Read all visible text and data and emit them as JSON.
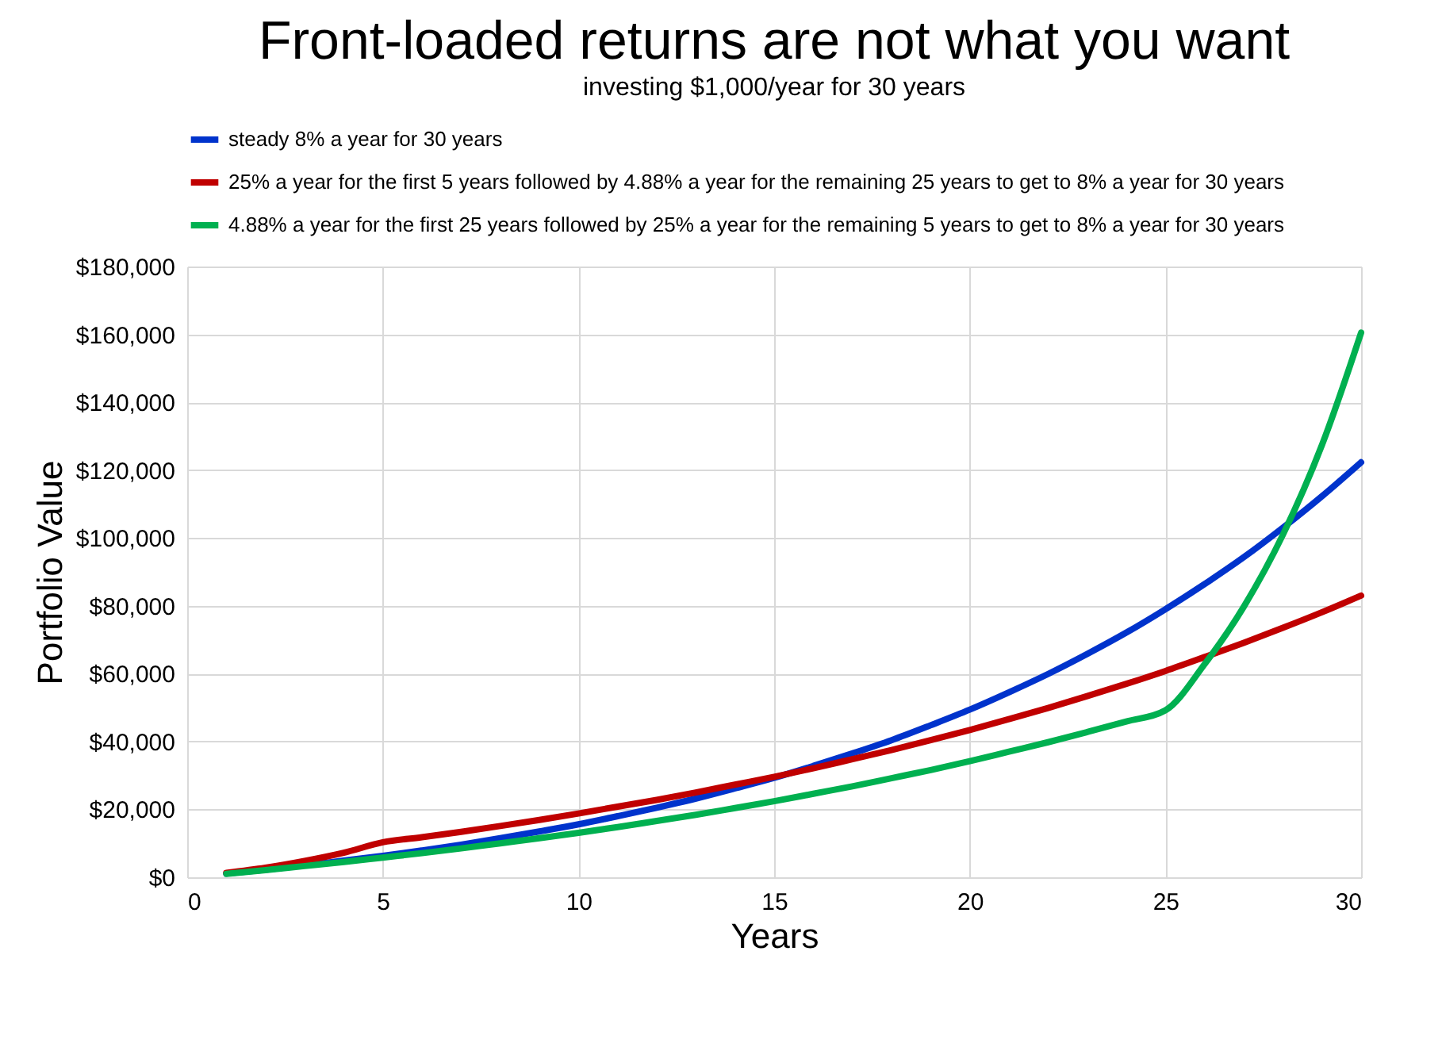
{
  "chart_data": {
    "type": "line",
    "title": "Front-loaded returns are not what you want",
    "subtitle": "investing $1,000/year for 30 years",
    "xlabel": "Years",
    "ylabel": "Portfolio Value",
    "x": [
      1,
      2,
      3,
      4,
      5,
      6,
      7,
      8,
      9,
      10,
      11,
      12,
      13,
      14,
      15,
      16,
      17,
      18,
      19,
      20,
      21,
      22,
      23,
      24,
      25,
      26,
      27,
      28,
      29,
      30
    ],
    "series": [
      {
        "name": "steady 8% a year for 30 years",
        "color": "#0033cc",
        "values": [
          1100,
          2200,
          3500,
          4900,
          6300,
          7900,
          9600,
          11500,
          13500,
          15600,
          18000,
          20500,
          23200,
          26200,
          29300,
          32800,
          36500,
          40400,
          44800,
          49400,
          54500,
          59900,
          65800,
          72100,
          79000,
          86400,
          94300,
          103000,
          112300,
          122300
        ]
      },
      {
        "name": "25% a year for the first 5 years followed by 4.88% a year for the remaining 25 years to get to 8% a year for 30 years",
        "color": "#c00000",
        "values": [
          1300,
          2800,
          4800,
          7200,
          10300,
          11800,
          13400,
          15100,
          16900,
          18800,
          20800,
          22800,
          25000,
          27300,
          29600,
          32100,
          34800,
          37500,
          40400,
          43400,
          46600,
          49900,
          53400,
          57000,
          60800,
          64900,
          69100,
          73500,
          78100,
          83000
        ]
      },
      {
        "name": "4.88% a year for the first 25 years followed by 25% a year for the remaining 5 years to get to 8% a year for 30 years",
        "color": "#00b050",
        "values": [
          1000,
          2100,
          3300,
          4500,
          5800,
          7100,
          8500,
          10000,
          11500,
          13100,
          14800,
          16600,
          18400,
          20400,
          22400,
          24600,
          26800,
          29200,
          31600,
          34200,
          37000,
          39800,
          42800,
          45900,
          49200,
          62800,
          79700,
          100900,
          127400,
          160500
        ]
      }
    ],
    "xlim": [
      0,
      30
    ],
    "xticks": [
      0,
      5,
      10,
      15,
      20,
      25,
      30
    ],
    "ylim": [
      0,
      180000
    ],
    "yticks": [
      {
        "value": 0,
        "label": "$0"
      },
      {
        "value": 20000,
        "label": "$20,000"
      },
      {
        "value": 40000,
        "label": "$40,000"
      },
      {
        "value": 60000,
        "label": "$60,000"
      },
      {
        "value": 80000,
        "label": "$80,000"
      },
      {
        "value": 100000,
        "label": "$100,000"
      },
      {
        "value": 120000,
        "label": "$120,000"
      },
      {
        "value": 140000,
        "label": "$140,000"
      },
      {
        "value": 160000,
        "label": "$160,000"
      },
      {
        "value": 180000,
        "label": "$180,000"
      }
    ],
    "grid": true,
    "legend": "top",
    "marker": "none",
    "line_style": "solid"
  }
}
